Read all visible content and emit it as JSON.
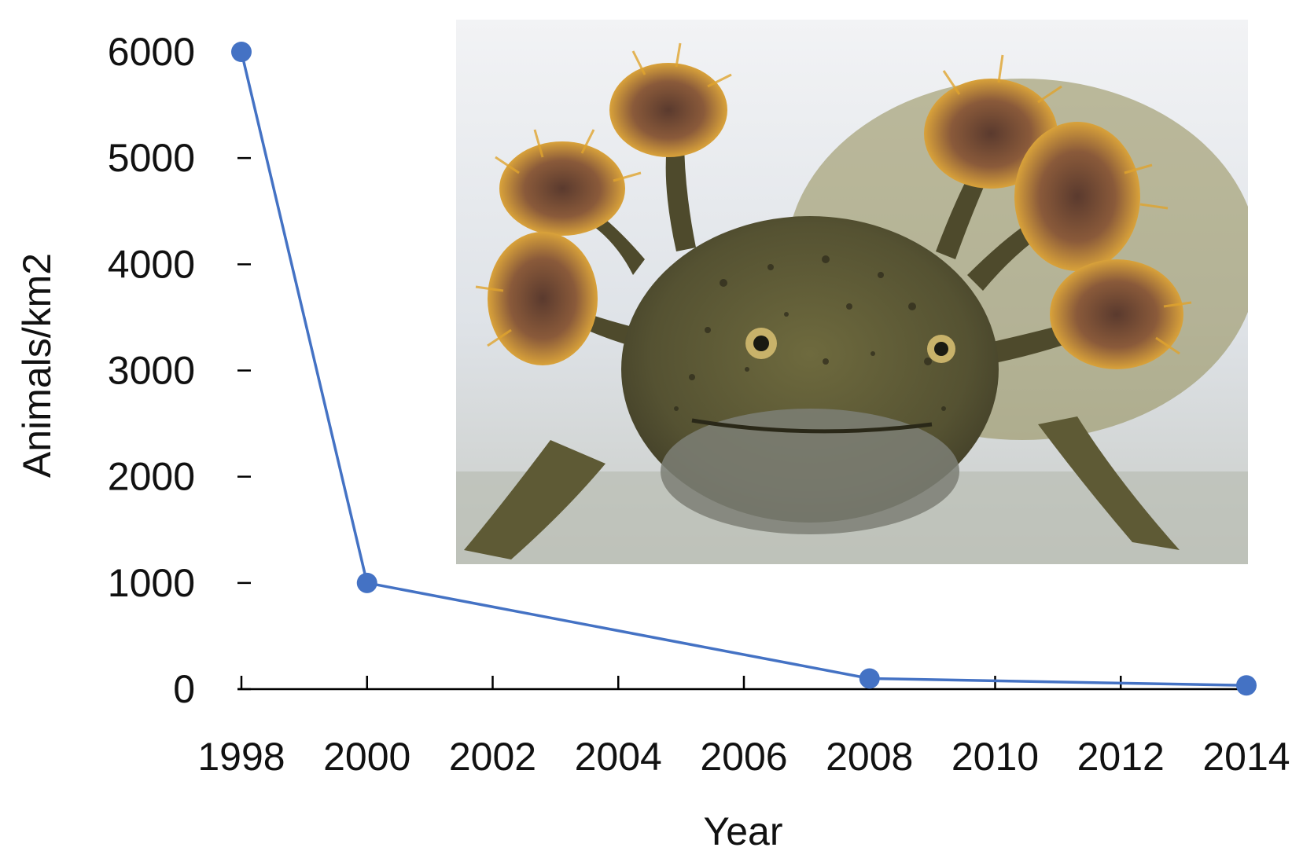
{
  "chart_data": {
    "type": "line",
    "title": "",
    "xlabel": "Year",
    "ylabel": "Animals/km2",
    "x_ticks": [
      "1998",
      "2000",
      "2002",
      "2004",
      "2006",
      "2008",
      "2010",
      "2012",
      "2014"
    ],
    "y_ticks": [
      "0",
      "1000",
      "2000",
      "3000",
      "4000",
      "5000",
      "6000"
    ],
    "xlim": [
      1998,
      2014
    ],
    "ylim": [
      0,
      6000
    ],
    "grid": false,
    "legend": "none",
    "series": [
      {
        "x": [
          1998,
          2000,
          2008,
          2014
        ],
        "y": [
          6000,
          1000,
          100,
          35
        ],
        "color": "#4472C4"
      }
    ],
    "inset_image": "axolotl-photo"
  },
  "colors": {
    "series": "#4472C4",
    "axis": "#000000"
  }
}
